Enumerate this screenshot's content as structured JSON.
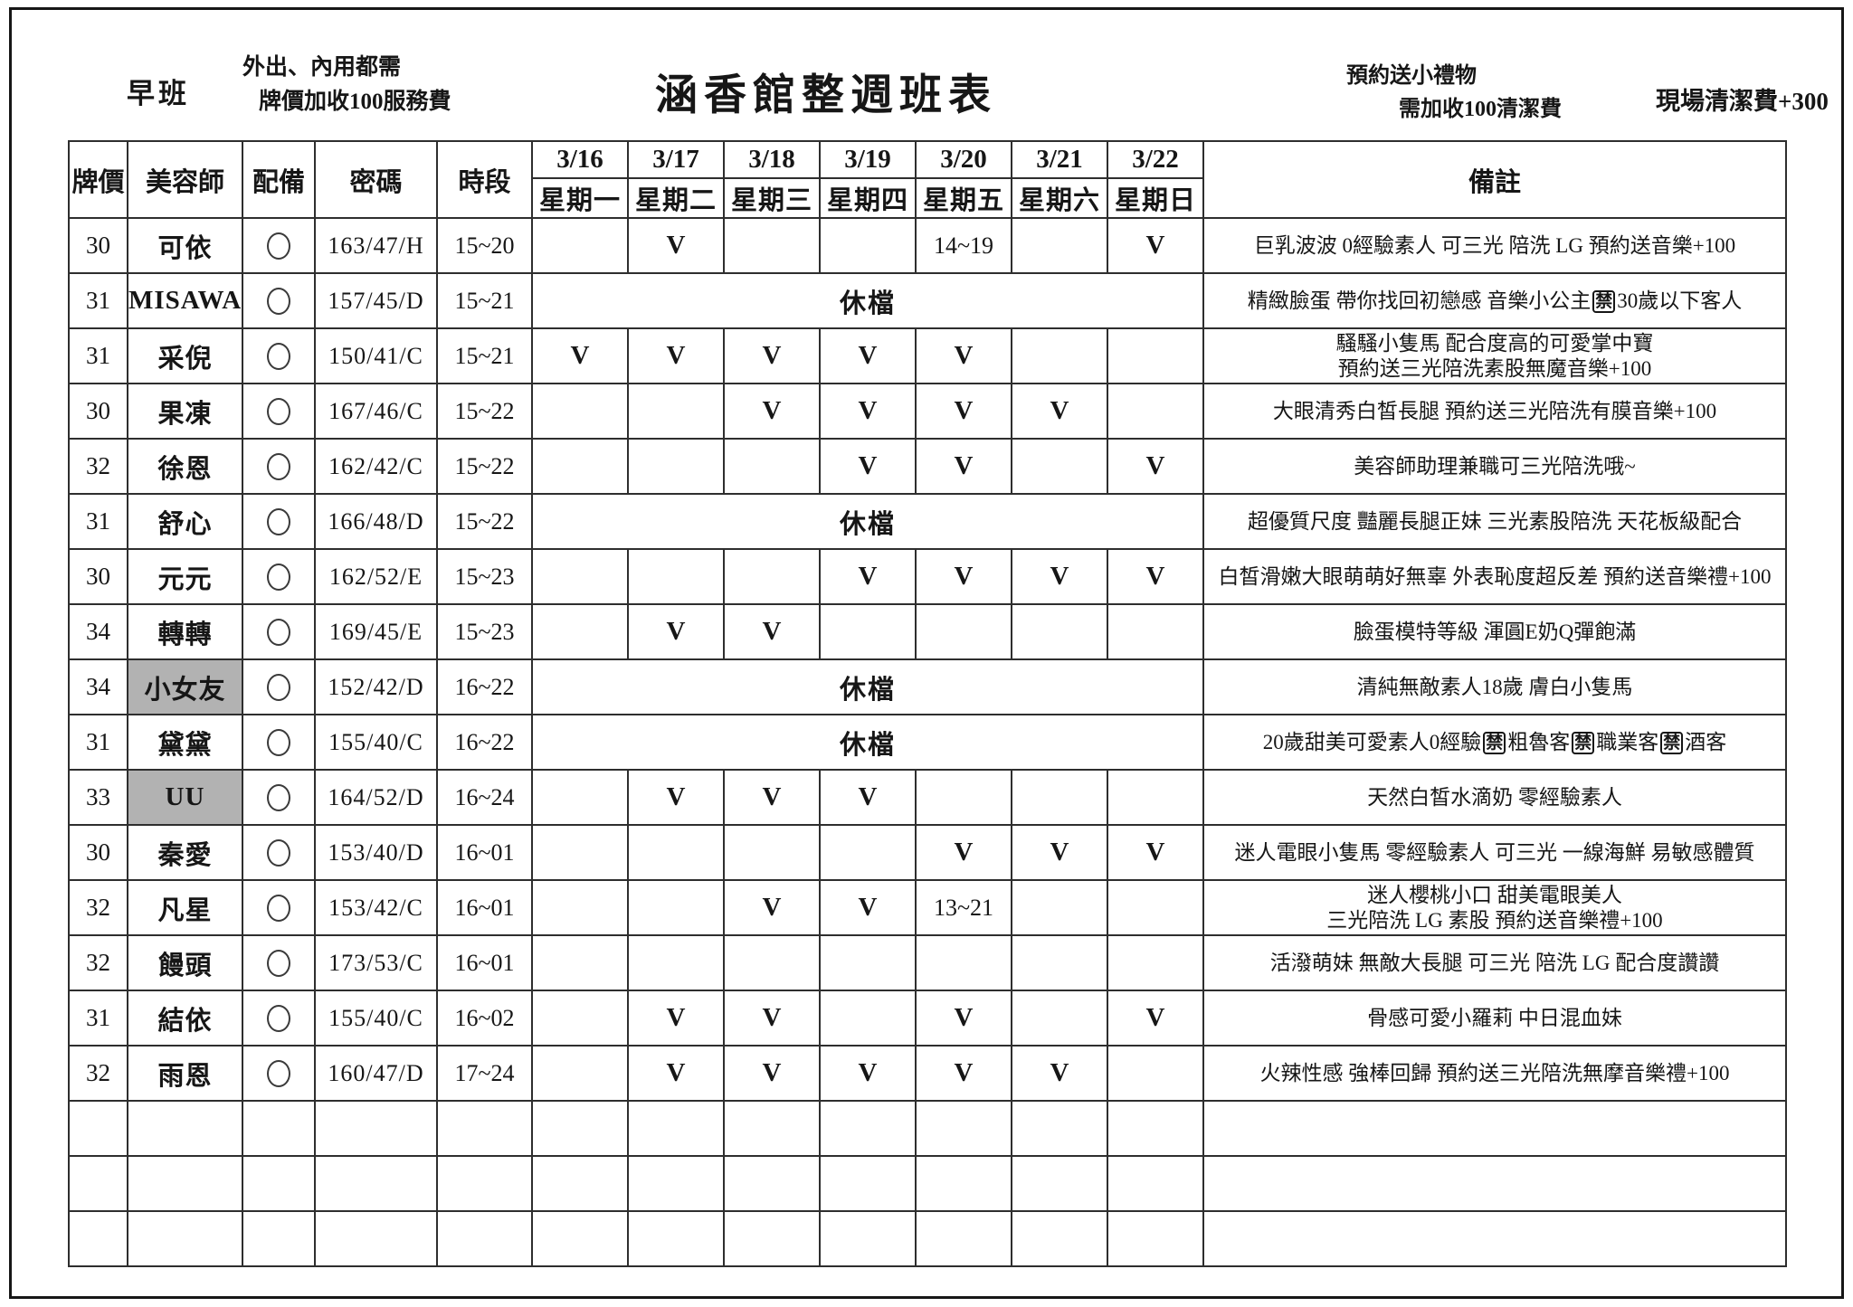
{
  "header": {
    "shift_label": "早班",
    "service_note_line1": "外出、內用都需",
    "service_note_line2": "牌價加收100服務費",
    "title": "涵香館整週班表",
    "booking_note_line1": "預約送小禮物",
    "booking_note_line2": "需加收100清潔費",
    "onsite_fee_note": "現場清潔費+300"
  },
  "table": {
    "columns": {
      "price": "牌價",
      "beautician": "美容師",
      "equipment": "配備",
      "code": "密碼",
      "time": "時段",
      "remark": "備註"
    },
    "days": [
      {
        "date": "3/16",
        "weekday": "星期一"
      },
      {
        "date": "3/17",
        "weekday": "星期二"
      },
      {
        "date": "3/18",
        "weekday": "星期三"
      },
      {
        "date": "3/19",
        "weekday": "星期四"
      },
      {
        "date": "3/20",
        "weekday": "星期五"
      },
      {
        "date": "3/21",
        "weekday": "星期六"
      },
      {
        "date": "3/22",
        "weekday": "星期日"
      }
    ],
    "rest_label": "休檔",
    "check_mark": "V",
    "ban_mark": "禁",
    "equip_icon": "circle-icon",
    "highlight_color": "#b2b2b2",
    "rows": [
      {
        "price": "30",
        "name": "可依",
        "highlight": false,
        "equipped": true,
        "code": "163/47/H",
        "time": "15~20",
        "rest": false,
        "days": [
          "",
          "V",
          "",
          "",
          "14~19",
          "",
          "V"
        ],
        "remark": [
          "巨乳波波 0經驗素人 可三光 陪洗 LG 預約送音樂+100"
        ]
      },
      {
        "price": "31",
        "name": "MISAWA",
        "highlight": false,
        "equipped": true,
        "code": "157/45/D",
        "time": "15~21",
        "rest": true,
        "days": [],
        "remark": [
          "精緻臉蛋 帶你找回初戀感 音樂小公主[禁]30歲以下客人"
        ]
      },
      {
        "price": "31",
        "name": "采倪",
        "highlight": false,
        "equipped": true,
        "code": "150/41/C",
        "time": "15~21",
        "rest": false,
        "days": [
          "V",
          "V",
          "V",
          "V",
          "V",
          "",
          ""
        ],
        "remark": [
          "騷騷小隻馬 配合度高的可愛掌中寶",
          "預約送三光陪洗素股無魔音樂+100"
        ]
      },
      {
        "price": "30",
        "name": "果凍",
        "highlight": false,
        "equipped": true,
        "code": "167/46/C",
        "time": "15~22",
        "rest": false,
        "days": [
          "",
          "",
          "V",
          "V",
          "V",
          "V",
          ""
        ],
        "remark": [
          "大眼清秀白皙長腿 預約送三光陪洗有膜音樂+100"
        ]
      },
      {
        "price": "32",
        "name": "徐恩",
        "highlight": false,
        "equipped": true,
        "code": "162/42/C",
        "time": "15~22",
        "rest": false,
        "days": [
          "",
          "",
          "",
          "V",
          "V",
          "",
          "V"
        ],
        "remark": [
          "美容師助理兼職可三光陪洗哦~"
        ]
      },
      {
        "price": "31",
        "name": "舒心",
        "highlight": false,
        "equipped": true,
        "code": "166/48/D",
        "time": "15~22",
        "rest": true,
        "days": [],
        "remark": [
          "超優質尺度 豔麗長腿正妹 三光素股陪洗 天花板級配合"
        ]
      },
      {
        "price": "30",
        "name": "元元",
        "highlight": false,
        "equipped": true,
        "code": "162/52/E",
        "time": "15~23",
        "rest": false,
        "days": [
          "",
          "",
          "",
          "V",
          "V",
          "V",
          "V"
        ],
        "remark": [
          "白皙滑嫩大眼萌萌好無辜 外表恥度超反差 預約送音樂禮+100"
        ]
      },
      {
        "price": "34",
        "name": "轉轉",
        "highlight": false,
        "equipped": true,
        "code": "169/45/E",
        "time": "15~23",
        "rest": false,
        "days": [
          "",
          "V",
          "V",
          "",
          "",
          "",
          ""
        ],
        "remark": [
          "臉蛋模特等級 渾圓E奶Q彈飽滿"
        ]
      },
      {
        "price": "34",
        "name": "小女友",
        "highlight": true,
        "equipped": true,
        "code": "152/42/D",
        "time": "16~22",
        "rest": true,
        "days": [],
        "remark": [
          "清純無敵素人18歲 膚白小隻馬"
        ]
      },
      {
        "price": "31",
        "name": "黛黛",
        "highlight": false,
        "equipped": true,
        "code": "155/40/C",
        "time": "16~22",
        "rest": true,
        "days": [],
        "remark": [
          "20歲甜美可愛素人0經驗[禁]粗魯客[禁]職業客[禁]酒客"
        ]
      },
      {
        "price": "33",
        "name": "UU",
        "highlight": true,
        "equipped": true,
        "code": "164/52/D",
        "time": "16~24",
        "rest": false,
        "days": [
          "",
          "V",
          "V",
          "V",
          "",
          "",
          ""
        ],
        "remark": [
          "天然白皙水滴奶 零經驗素人"
        ]
      },
      {
        "price": "30",
        "name": "秦愛",
        "highlight": false,
        "equipped": true,
        "code": "153/40/D",
        "time": "16~01",
        "rest": false,
        "days": [
          "",
          "",
          "",
          "",
          "V",
          "V",
          "V"
        ],
        "remark": [
          "迷人電眼小隻馬 零經驗素人 可三光 一線海鮮 易敏感體質"
        ]
      },
      {
        "price": "32",
        "name": "凡星",
        "highlight": false,
        "equipped": true,
        "code": "153/42/C",
        "time": "16~01",
        "rest": false,
        "days": [
          "",
          "",
          "V",
          "V",
          "13~21",
          "",
          ""
        ],
        "remark": [
          "迷人櫻桃小口 甜美電眼美人",
          "三光陪洗 LG 素股 預約送音樂禮+100"
        ]
      },
      {
        "price": "32",
        "name": "饅頭",
        "highlight": false,
        "equipped": true,
        "code": "173/53/C",
        "time": "16~01",
        "rest": false,
        "days": [
          "",
          "",
          "",
          "",
          "",
          "",
          ""
        ],
        "remark": [
          "活潑萌妹 無敵大長腿 可三光 陪洗 LG 配合度讚讚"
        ]
      },
      {
        "price": "31",
        "name": "結依",
        "highlight": false,
        "equipped": true,
        "code": "155/40/C",
        "time": "16~02",
        "rest": false,
        "days": [
          "",
          "V",
          "V",
          "",
          "V",
          "",
          "V"
        ],
        "remark": [
          "骨感可愛小羅莉 中日混血妹"
        ]
      },
      {
        "price": "32",
        "name": "雨恩",
        "highlight": false,
        "equipped": true,
        "code": "160/47/D",
        "time": "17~24",
        "rest": false,
        "days": [
          "",
          "V",
          "V",
          "V",
          "V",
          "V",
          ""
        ],
        "remark": [
          "火辣性感 強棒回歸 預約送三光陪洗無摩音樂禮+100"
        ]
      }
    ],
    "empty_row_count": 3
  }
}
